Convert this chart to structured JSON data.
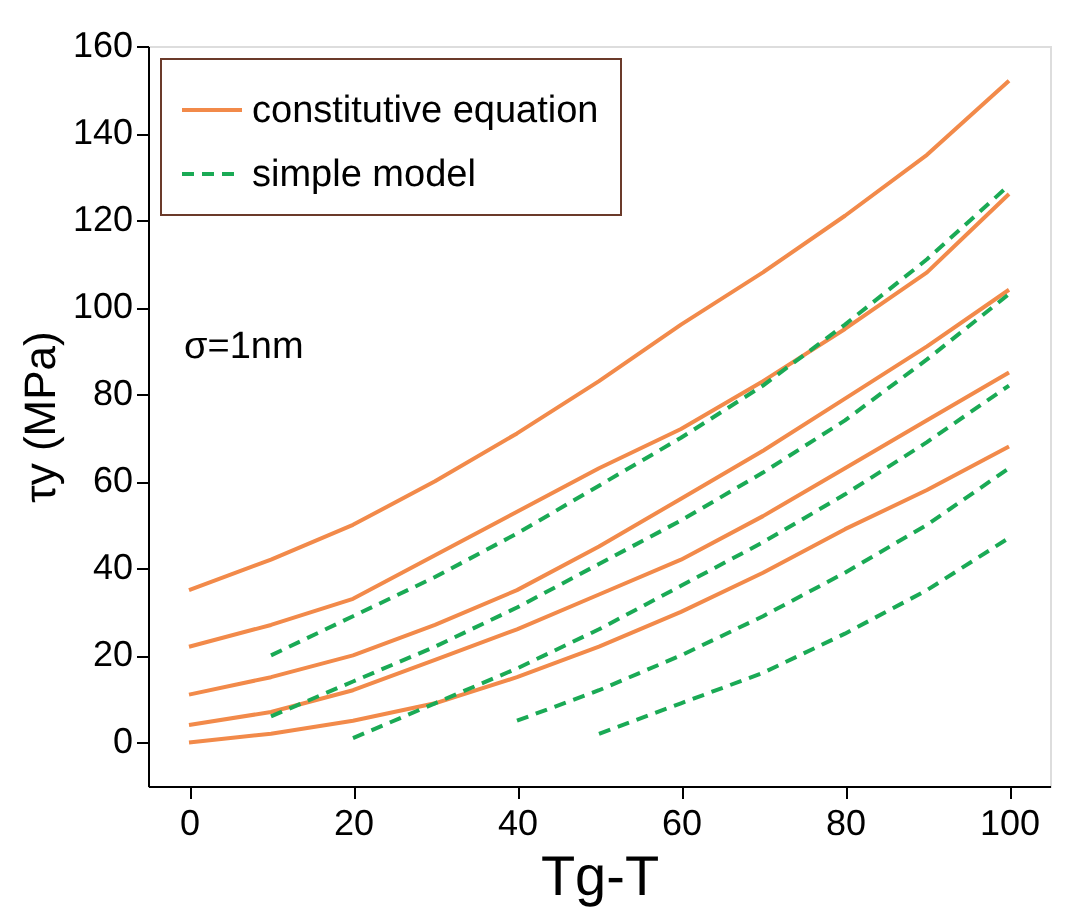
{
  "chart_data": {
    "type": "line",
    "xlabel": "Tg-T",
    "ylabel": "τy (MPa)",
    "x": [
      0,
      10,
      20,
      30,
      40,
      50,
      60,
      70,
      80,
      90,
      100
    ],
    "series": [
      {
        "name": "constitutive equation",
        "color": "#f28a4a",
        "line_style": "solid",
        "values": [
          35,
          42,
          50,
          60,
          71,
          83,
          96,
          108,
          121,
          135,
          152
        ]
      },
      {
        "color": "#f28a4a",
        "line_style": "solid",
        "values": [
          22,
          27,
          33,
          43,
          53,
          63,
          72,
          83,
          95,
          108,
          126
        ]
      },
      {
        "color": "#f28a4a",
        "line_style": "solid",
        "values": [
          11,
          15,
          20,
          27,
          35,
          45,
          56,
          67,
          79,
          91,
          104
        ]
      },
      {
        "color": "#f28a4a",
        "line_style": "solid",
        "values": [
          4,
          7,
          12,
          19,
          26,
          34,
          42,
          52,
          63,
          74,
          85
        ]
      },
      {
        "color": "#f28a4a",
        "line_style": "solid",
        "values": [
          0,
          2,
          5,
          9,
          15,
          22,
          30,
          39,
          49,
          58,
          68
        ]
      },
      {
        "name": "simple model",
        "color": "#1aaa55",
        "line_style": "dashed",
        "x": [
          10,
          20,
          30,
          40,
          50,
          60,
          70,
          80,
          90,
          100
        ],
        "values": [
          20,
          29,
          38,
          48,
          59,
          70,
          82,
          96,
          111,
          128
        ]
      },
      {
        "color": "#1aaa55",
        "line_style": "dashed",
        "x": [
          10,
          20,
          30,
          40,
          50,
          60,
          70,
          80,
          90,
          100
        ],
        "values": [
          6,
          14,
          22,
          31,
          41,
          51,
          62,
          74,
          88,
          103
        ]
      },
      {
        "color": "#1aaa55",
        "line_style": "dashed",
        "x": [
          20,
          30,
          40,
          50,
          60,
          70,
          80,
          90,
          100
        ],
        "values": [
          1,
          9,
          17,
          26,
          36,
          46,
          57,
          69,
          82
        ]
      },
      {
        "color": "#1aaa55",
        "line_style": "dashed",
        "x": [
          40,
          50,
          60,
          70,
          80,
          90,
          100
        ],
        "values": [
          5,
          12,
          20,
          29,
          39,
          50,
          63
        ]
      },
      {
        "color": "#1aaa55",
        "line_style": "dashed",
        "x": [
          50,
          60,
          70,
          80,
          90,
          100
        ],
        "values": [
          2,
          9,
          16,
          25,
          35,
          47
        ]
      }
    ],
    "xlim": [
      -5,
      105
    ],
    "xticks": [
      0,
      20,
      40,
      60,
      80,
      100
    ],
    "ylim": [
      -10,
      160
    ],
    "yticks": [
      0,
      20,
      40,
      60,
      80,
      100,
      120,
      140,
      160
    ],
    "annotations": [
      "σ=1nm"
    ],
    "grid": false,
    "legend": "top left"
  }
}
